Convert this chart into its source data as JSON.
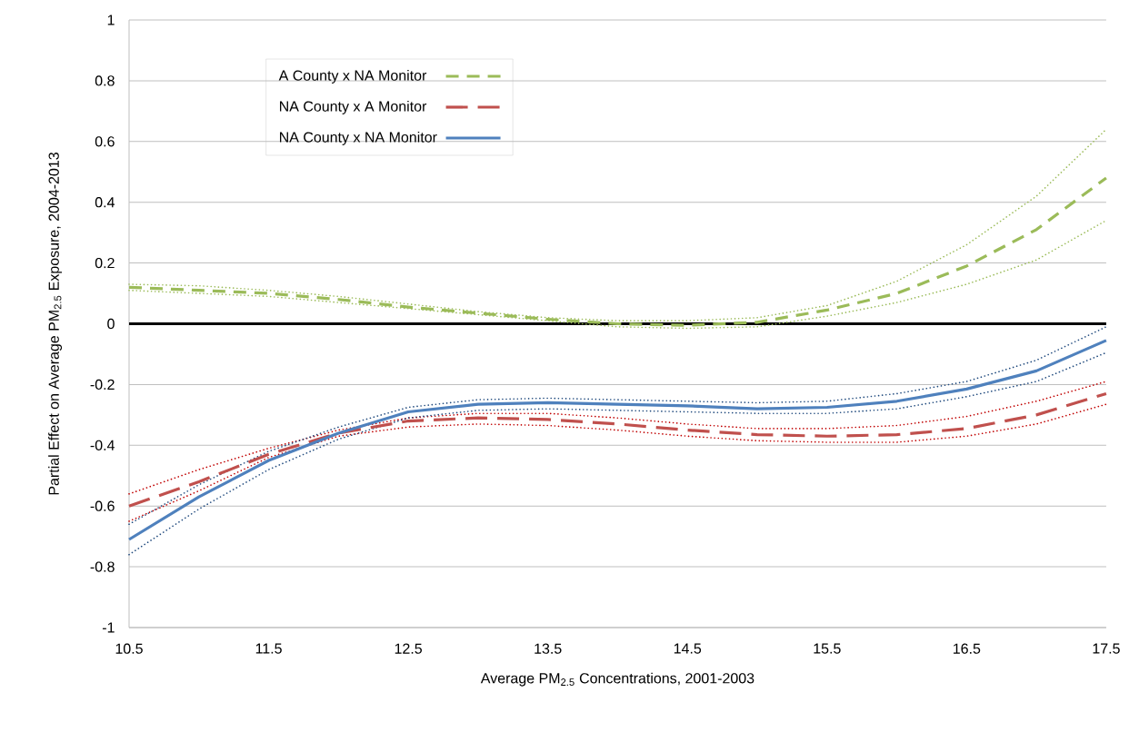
{
  "chart_data": {
    "type": "line",
    "xlabel": "Average PM$_{2.5}$ Concentrations, 2001-2003",
    "ylabel": "Partial Effect on Average PM$_{2.5}$ Exposure, 2004-2013",
    "x": [
      10.5,
      11,
      11.5,
      12,
      12.5,
      13,
      13.5,
      14,
      14.5,
      15,
      15.5,
      16,
      16.5,
      17,
      17.5
    ],
    "series": [
      {
        "name": "A County x NA Monitor",
        "color": "#9bbb59",
        "line_style": "dashed",
        "values": [
          0.12,
          0.11,
          0.1,
          0.08,
          0.055,
          0.035,
          0.015,
          0.0,
          -0.005,
          0.005,
          0.045,
          0.1,
          0.19,
          0.31,
          0.48
        ]
      },
      {
        "name": "NA County x A Monitor",
        "color": "#c0504d",
        "line_style": "dashed",
        "values": [
          -0.6,
          -0.52,
          -0.43,
          -0.36,
          -0.32,
          -0.31,
          -0.315,
          -0.33,
          -0.35,
          -0.365,
          -0.37,
          -0.365,
          -0.345,
          -0.3,
          -0.23
        ]
      },
      {
        "name": "NA County x NA Monitor",
        "color": "#4f81bd",
        "line_style": "solid",
        "values": [
          -0.71,
          -0.57,
          -0.45,
          -0.36,
          -0.29,
          -0.265,
          -0.26,
          -0.265,
          -0.27,
          -0.28,
          -0.275,
          -0.255,
          -0.215,
          -0.155,
          -0.055
        ]
      },
      {
        "color": "#9bbb59",
        "line_style": "dotted",
        "values": [
          0.13,
          0.125,
          0.11,
          0.09,
          0.065,
          0.04,
          0.02,
          0.01,
          0.01,
          0.02,
          0.06,
          0.14,
          0.26,
          0.42,
          0.64
        ]
      },
      {
        "color": "#9bbb59",
        "line_style": "dotted",
        "values": [
          0.11,
          0.1,
          0.09,
          0.07,
          0.05,
          0.03,
          0.01,
          -0.01,
          -0.015,
          -0.01,
          0.025,
          0.07,
          0.13,
          0.21,
          0.34
        ]
      },
      {
        "color": "#c00000",
        "line_style": "dotted",
        "values": [
          -0.56,
          -0.48,
          -0.41,
          -0.35,
          -0.31,
          -0.295,
          -0.295,
          -0.31,
          -0.33,
          -0.345,
          -0.345,
          -0.335,
          -0.305,
          -0.255,
          -0.19
        ]
      },
      {
        "color": "#c00000",
        "line_style": "dotted",
        "values": [
          -0.65,
          -0.55,
          -0.44,
          -0.37,
          -0.34,
          -0.33,
          -0.335,
          -0.35,
          -0.37,
          -0.385,
          -0.39,
          -0.39,
          -0.37,
          -0.33,
          -0.265
        ]
      },
      {
        "color": "#1f497d",
        "line_style": "dotted",
        "values": [
          -0.66,
          -0.53,
          -0.42,
          -0.34,
          -0.275,
          -0.25,
          -0.245,
          -0.25,
          -0.255,
          -0.26,
          -0.255,
          -0.23,
          -0.19,
          -0.12,
          -0.01
        ]
      },
      {
        "color": "#1f497d",
        "line_style": "dotted",
        "values": [
          -0.76,
          -0.61,
          -0.48,
          -0.38,
          -0.31,
          -0.285,
          -0.28,
          -0.285,
          -0.29,
          -0.295,
          -0.295,
          -0.28,
          -0.24,
          -0.19,
          -0.095
        ]
      }
    ],
    "xlim": [
      10.5,
      17.5
    ],
    "xticks": [
      10.5,
      11.5,
      12.5,
      13.5,
      14.5,
      15.5,
      16.5,
      17.5
    ],
    "ylim": [
      -1,
      1
    ],
    "yticks": [
      -1,
      -0.8,
      -0.6,
      -0.4,
      -0.2,
      0,
      0.2,
      0.4,
      0.6,
      0.8,
      1
    ],
    "grid": "y",
    "legend": "top left",
    "marker": "none",
    "ref_lines": [
      {
        "axis": "y",
        "value": 0,
        "color": "#000000",
        "line_style": "solid"
      }
    ]
  }
}
